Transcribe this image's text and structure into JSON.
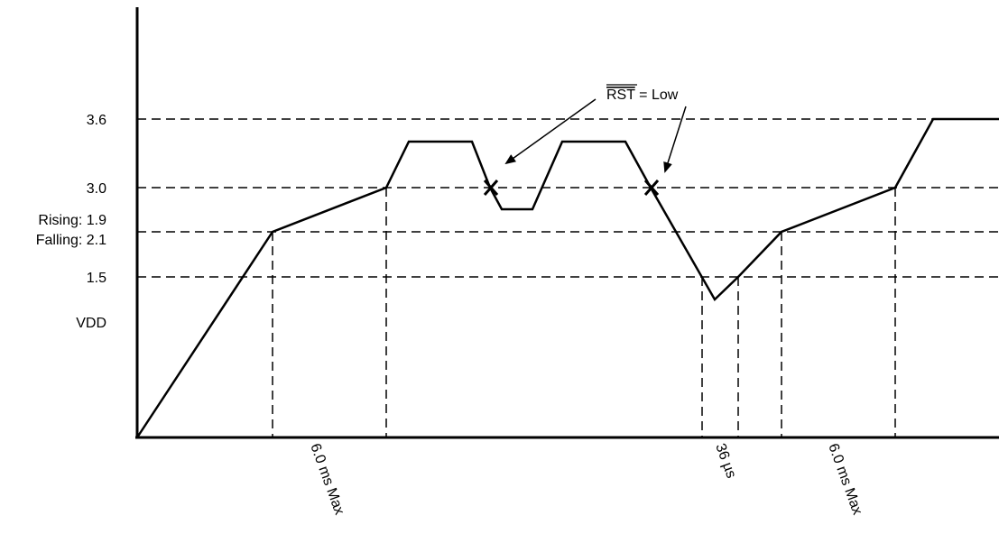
{
  "y_labels": {
    "v36": "3.6",
    "v30": "3.0",
    "rising": "Rising: 1.9",
    "falling": "Falling: 2.1",
    "v15": "1.5",
    "vdd": "VDD"
  },
  "annotation": {
    "rst_signal": "RST",
    "rst_value": " = Low"
  },
  "time_labels": {
    "t1": "6.0 ms Max",
    "t2": "36 µs",
    "t3": "6.0 ms Max"
  }
}
